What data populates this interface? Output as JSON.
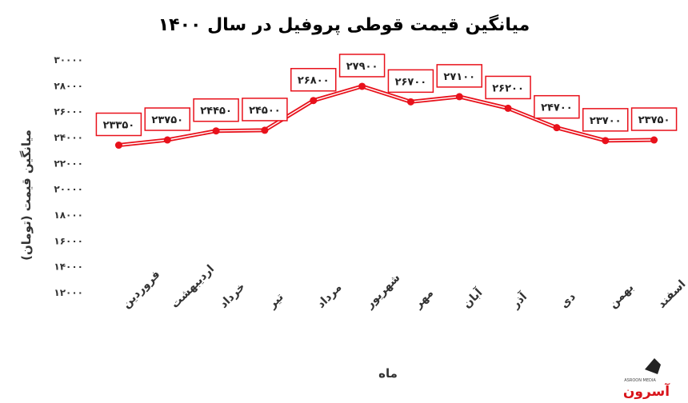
{
  "chart_data": {
    "type": "line",
    "title": "میانگین قیمت قوطی پروفیل در سال ۱۴۰۰",
    "xlabel": "ماه",
    "ylabel": "میانگین قیمت (تومان)",
    "categories": [
      "فروردین",
      "اردیبهشت",
      "خرداد",
      "تیر",
      "مرداد",
      "شهریور",
      "مهر",
      "آبان",
      "آذر",
      "دی",
      "بهمن",
      "اسفند"
    ],
    "values": [
      23350,
      23750,
      24450,
      24500,
      26800,
      27900,
      26700,
      27100,
      26200,
      24700,
      23700,
      23750
    ],
    "data_labels": [
      "۲۳۳۵۰",
      "۲۳۷۵۰",
      "۲۴۴۵۰",
      "۲۴۵۰۰",
      "۲۶۸۰۰",
      "۲۷۹۰۰",
      "۲۶۷۰۰",
      "۲۷۱۰۰",
      "۲۶۲۰۰",
      "۲۴۷۰۰",
      "۲۳۷۰۰",
      "۲۳۷۵۰"
    ],
    "ylim": [
      12000,
      30000
    ],
    "yticks": [
      12000,
      14000,
      16000,
      18000,
      20000,
      22000,
      24000,
      26000,
      28000,
      30000
    ],
    "ytick_labels": [
      "۱۲۰۰۰",
      "۱۴۰۰۰",
      "۱۶۰۰۰",
      "۱۸۰۰۰",
      "۲۰۰۰۰",
      "۲۲۰۰۰",
      "۲۴۰۰۰",
      "۲۶۰۰۰",
      "۲۸۰۰۰",
      "۳۰۰۰۰"
    ],
    "grid": false,
    "legend": "none",
    "line_color": "#e8111b"
  },
  "watermark": {
    "text": "آسرون",
    "subtext": "ASROON MEDIA",
    "color": "#d9141b"
  }
}
